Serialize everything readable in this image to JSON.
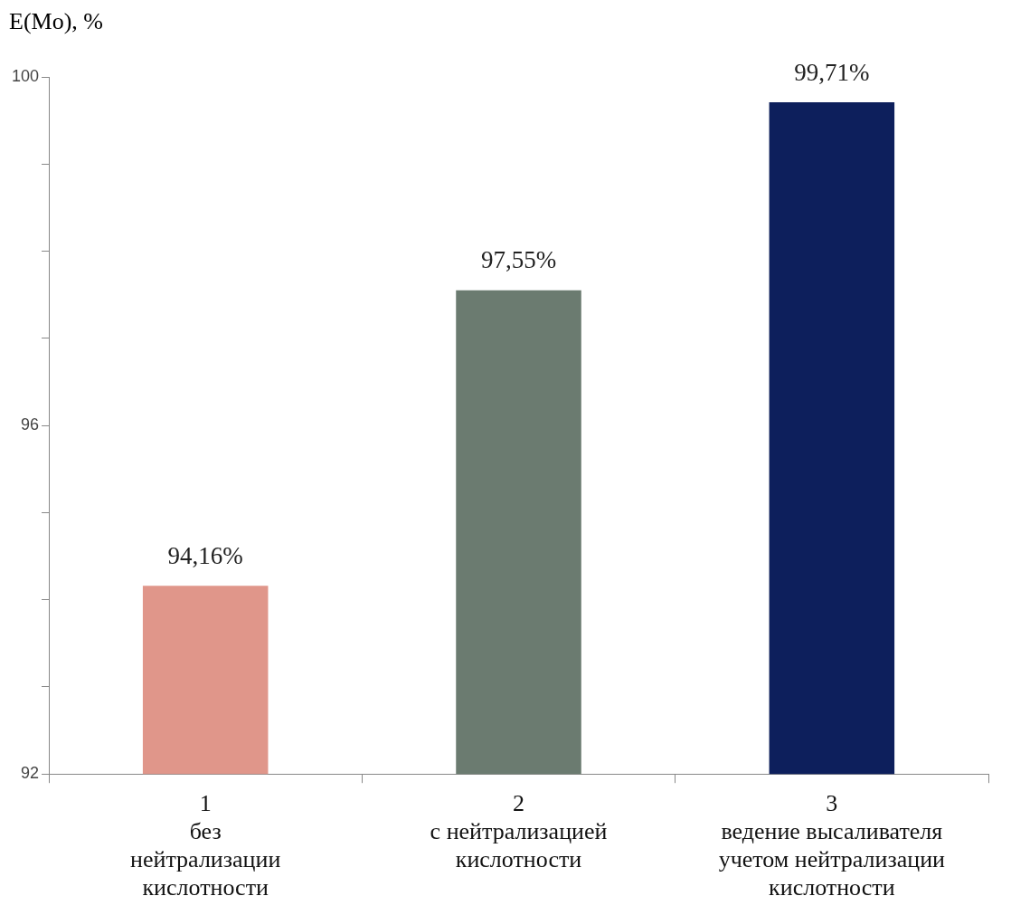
{
  "chart_data": {
    "type": "bar",
    "ylabel": "E(Mo), %",
    "categories": [
      "1\nбез\nнейтрализации\nкислотности",
      "2\nс нейтрализацией\nкислотности",
      "3\nведение высаливателя\nучетом нейтрализации\nкислотности"
    ],
    "values": [
      94.16,
      97.55,
      99.71
    ],
    "colors": [
      "#e0968a",
      "#6b7b70",
      "#0d1f5c"
    ],
    "value_labels": [
      "94,16%",
      "97,55%",
      "99,71%"
    ],
    "ylim": [
      92,
      100
    ],
    "yticks": [
      92,
      {
        "value": 93,
        "label": null
      },
      {
        "value": 94,
        "label": null
      },
      {
        "value": 95,
        "label": null
      },
      96,
      {
        "value": 97,
        "label": null
      },
      {
        "value": 98,
        "label": null
      },
      {
        "value": 99,
        "label": null
      },
      100
    ],
    "grid": false,
    "legend": false
  }
}
